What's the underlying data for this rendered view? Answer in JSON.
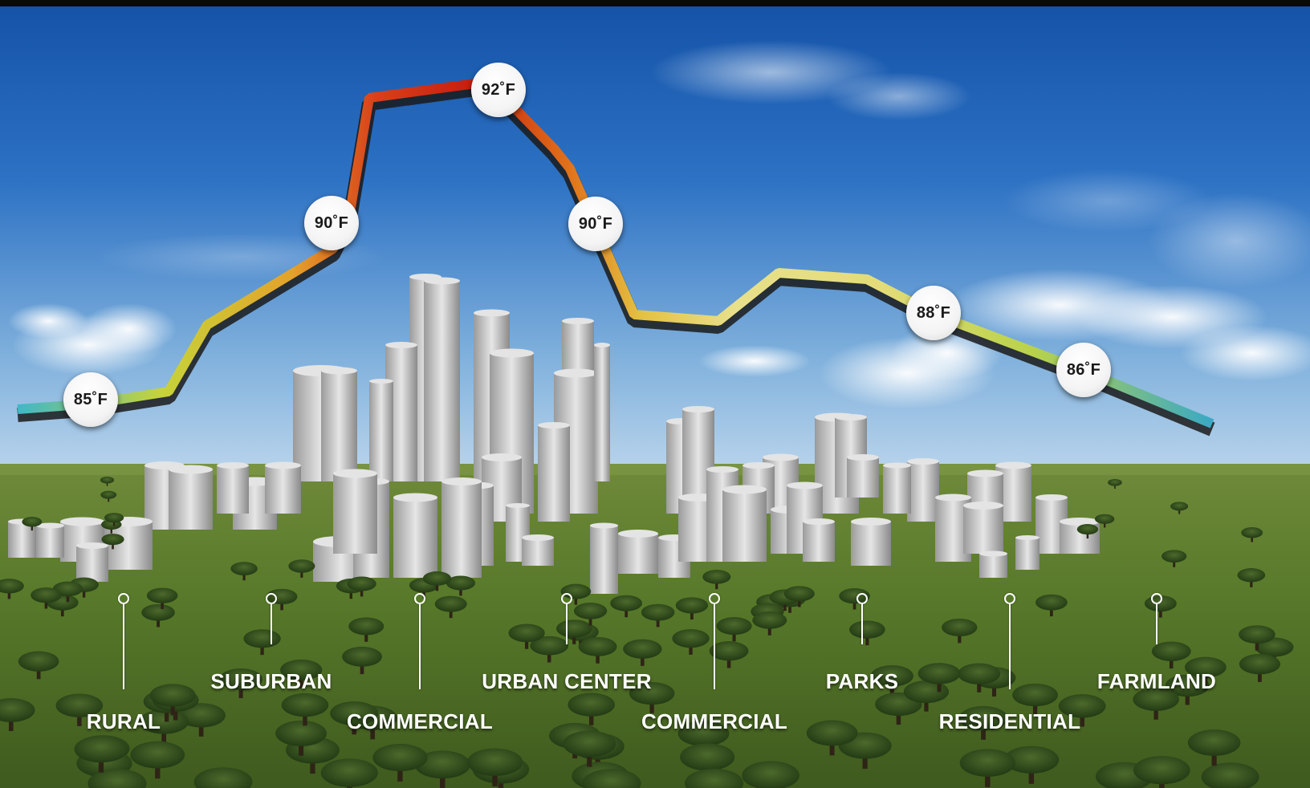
{
  "diagram": {
    "temperature_readings": [
      {
        "value": "85˚F",
        "zone": "RURAL"
      },
      {
        "value": "90˚F",
        "zone": "COMMERCIAL"
      },
      {
        "value": "92˚F",
        "zone": "URBAN CENTER"
      },
      {
        "value": "90˚F",
        "zone": "COMMERCIAL"
      },
      {
        "value": "88˚F",
        "zone": "RESIDENTIAL"
      },
      {
        "value": "86˚F",
        "zone": "FARMLAND"
      }
    ],
    "zones": [
      "RURAL",
      "SUBURBAN",
      "COMMERCIAL",
      "URBAN CENTER",
      "COMMERCIAL",
      "PARKS",
      "RESIDENTIAL",
      "FARMLAND"
    ],
    "colors": {
      "sky_top": "#1a5fb4",
      "sky_bottom": "#b9d6ec",
      "grass": "#5d7a2a",
      "hot": "#c81e0e",
      "warm": "#f08a1a",
      "mild": "#e2d84a",
      "cool": "#3fb8c8"
    }
  }
}
